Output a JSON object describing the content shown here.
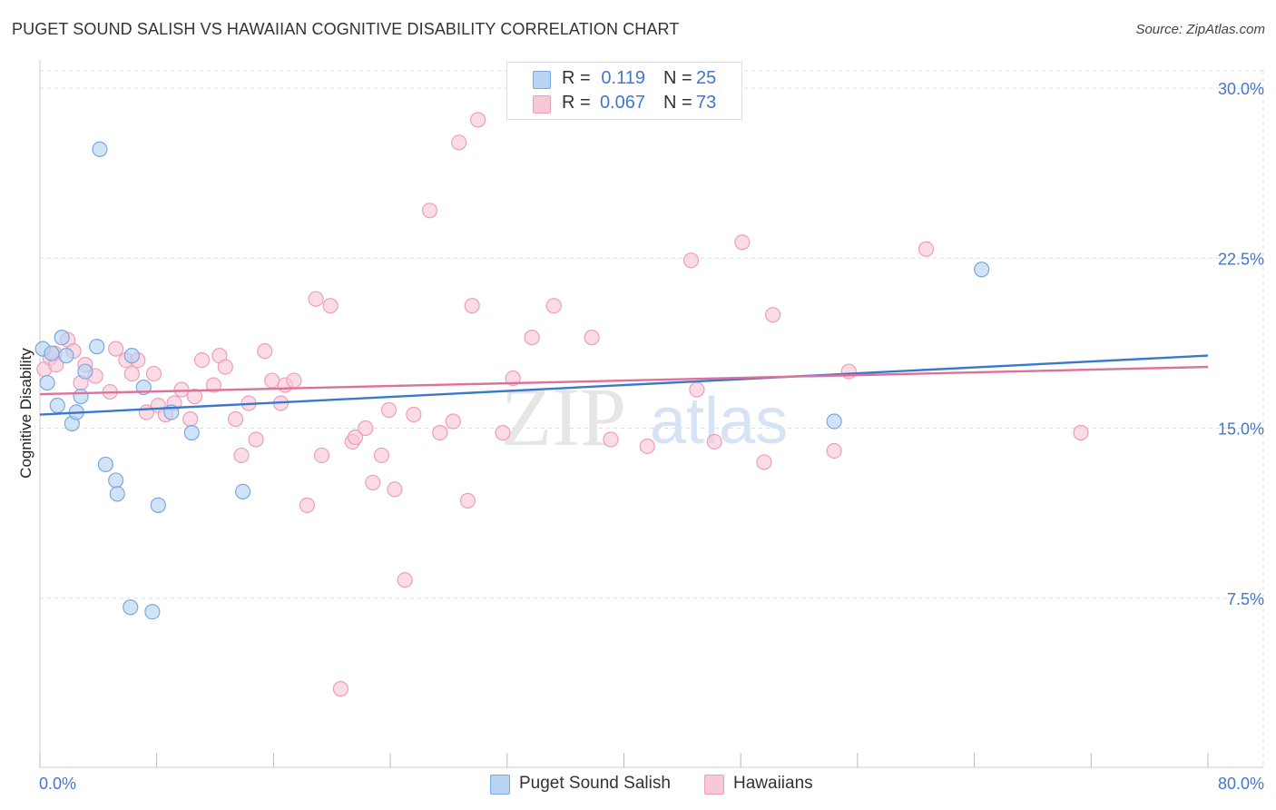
{
  "title": "PUGET SOUND SALISH VS HAWAIIAN COGNITIVE DISABILITY CORRELATION CHART",
  "source": "Source: ZipAtlas.com",
  "watermark": {
    "zip": "ZIP",
    "atlas": "atlas"
  },
  "legend": {
    "rows": [
      {
        "r_label": "R =",
        "r_value": "0.119",
        "n_label": "N =",
        "n_value": "25"
      },
      {
        "r_label": "R =",
        "r_value": "0.067",
        "n_label": "N =",
        "n_value": "73"
      }
    ]
  },
  "bottom_legend": [
    {
      "label": "Puget Sound Salish"
    },
    {
      "label": "Hawaiians"
    }
  ],
  "colors": {
    "blue_fill": "#b8d4f4",
    "blue_stroke": "#7aa8e0",
    "blue_line": "#3a78d0",
    "pink_fill": "#f9c8d8",
    "pink_stroke": "#ec9fb8",
    "pink_line": "#e07098",
    "grid": "#dddddd",
    "axis_text": "#4477cc"
  },
  "chart_data": {
    "type": "scatter",
    "title": "PUGET SOUND SALISH VS HAWAIIAN COGNITIVE DISABILITY CORRELATION CHART",
    "xlabel": "",
    "ylabel": "Cognitive Disability",
    "xlim": [
      0,
      80
    ],
    "ylim": [
      0,
      31
    ],
    "x_tick_labels": [
      "0.0%",
      "80.0%"
    ],
    "y_ticks": [
      7.5,
      15.0,
      22.5,
      30.0
    ],
    "y_tick_labels": [
      "7.5%",
      "15.0%",
      "22.5%",
      "30.0%"
    ],
    "series": [
      {
        "name": "Puget Sound Salish",
        "color": "#b8d4f4",
        "trend": {
          "x": [
            0,
            80
          ],
          "y": [
            15.6,
            18.2
          ]
        },
        "points": [
          [
            0.2,
            18.5
          ],
          [
            0.5,
            17.0
          ],
          [
            0.8,
            18.3
          ],
          [
            1.2,
            16.0
          ],
          [
            1.5,
            19.0
          ],
          [
            1.8,
            18.2
          ],
          [
            2.2,
            15.2
          ],
          [
            2.5,
            15.7
          ],
          [
            2.8,
            16.4
          ],
          [
            3.1,
            17.5
          ],
          [
            3.9,
            18.6
          ],
          [
            4.1,
            27.3
          ],
          [
            4.5,
            13.4
          ],
          [
            5.2,
            12.7
          ],
          [
            5.3,
            12.1
          ],
          [
            6.2,
            7.1
          ],
          [
            6.3,
            18.2
          ],
          [
            7.1,
            16.8
          ],
          [
            7.7,
            6.9
          ],
          [
            8.1,
            11.6
          ],
          [
            9.0,
            15.7
          ],
          [
            10.4,
            14.8
          ],
          [
            13.9,
            12.2
          ],
          [
            64.5,
            22.0
          ],
          [
            54.4,
            15.3
          ]
        ]
      },
      {
        "name": "Hawaiians",
        "color": "#f9c8d8",
        "trend": {
          "x": [
            0,
            80
          ],
          "y": [
            16.5,
            17.7
          ]
        },
        "points": [
          [
            0.3,
            17.6
          ],
          [
            0.7,
            18.1
          ],
          [
            1.0,
            18.3
          ],
          [
            1.1,
            17.8
          ],
          [
            1.9,
            18.9
          ],
          [
            2.3,
            18.4
          ],
          [
            2.8,
            17.0
          ],
          [
            3.1,
            17.8
          ],
          [
            3.8,
            17.3
          ],
          [
            4.8,
            16.6
          ],
          [
            5.2,
            18.5
          ],
          [
            5.9,
            18.0
          ],
          [
            6.3,
            17.4
          ],
          [
            6.7,
            18.0
          ],
          [
            7.3,
            15.7
          ],
          [
            7.8,
            17.4
          ],
          [
            8.1,
            16.0
          ],
          [
            8.6,
            15.6
          ],
          [
            9.2,
            16.1
          ],
          [
            9.7,
            16.7
          ],
          [
            10.3,
            15.4
          ],
          [
            10.6,
            16.4
          ],
          [
            11.1,
            18.0
          ],
          [
            11.9,
            16.9
          ],
          [
            12.3,
            18.2
          ],
          [
            12.7,
            17.7
          ],
          [
            13.4,
            15.4
          ],
          [
            13.8,
            13.8
          ],
          [
            14.3,
            16.1
          ],
          [
            14.8,
            14.5
          ],
          [
            15.4,
            18.4
          ],
          [
            15.9,
            17.1
          ],
          [
            16.5,
            16.1
          ],
          [
            16.8,
            16.9
          ],
          [
            17.4,
            17.1
          ],
          [
            18.3,
            11.6
          ],
          [
            18.9,
            20.7
          ],
          [
            19.3,
            13.8
          ],
          [
            19.9,
            20.4
          ],
          [
            20.6,
            3.5
          ],
          [
            21.4,
            14.4
          ],
          [
            21.6,
            14.6
          ],
          [
            22.3,
            15.0
          ],
          [
            22.8,
            12.6
          ],
          [
            23.4,
            13.8
          ],
          [
            23.9,
            15.8
          ],
          [
            24.3,
            12.3
          ],
          [
            25.0,
            8.3
          ],
          [
            25.6,
            15.6
          ],
          [
            26.7,
            24.6
          ],
          [
            27.4,
            14.8
          ],
          [
            28.3,
            15.3
          ],
          [
            28.7,
            27.6
          ],
          [
            29.3,
            11.8
          ],
          [
            29.6,
            20.4
          ],
          [
            30.0,
            28.6
          ],
          [
            31.7,
            14.8
          ],
          [
            32.4,
            17.2
          ],
          [
            33.7,
            19.0
          ],
          [
            35.2,
            20.4
          ],
          [
            37.8,
            19.0
          ],
          [
            39.1,
            14.5
          ],
          [
            41.6,
            14.2
          ],
          [
            44.6,
            22.4
          ],
          [
            45.0,
            16.7
          ],
          [
            46.2,
            14.4
          ],
          [
            48.1,
            23.2
          ],
          [
            49.6,
            13.5
          ],
          [
            50.2,
            20.0
          ],
          [
            54.4,
            14.0
          ],
          [
            55.4,
            17.5
          ],
          [
            60.7,
            22.9
          ],
          [
            71.3,
            14.8
          ]
        ]
      }
    ]
  }
}
